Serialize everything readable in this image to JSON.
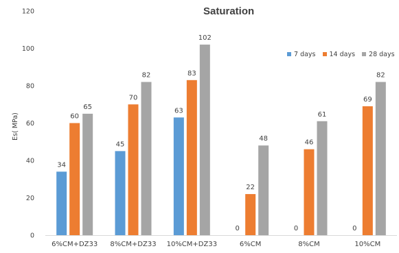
{
  "chart_data": {
    "type": "bar",
    "title": "Saturation",
    "ylabel": "Es( MPa)",
    "xlabel": "",
    "ylim": [
      0,
      120
    ],
    "ytick_step": 20,
    "ytick_labels": [
      "0",
      "20",
      "40",
      "60",
      "80",
      "100",
      "120"
    ],
    "categories": [
      "6%CM+DZ33",
      "8%CM+DZ33",
      "10%CM+DZ33",
      "6%CM",
      "8%CM",
      "10%CM"
    ],
    "series": [
      {
        "name": "7 days",
        "color": "#5b9bd5",
        "values": [
          34,
          45,
          63,
          0,
          0,
          0
        ]
      },
      {
        "name": "14 days",
        "color": "#ed7d31",
        "values": [
          60,
          70,
          83,
          22,
          46,
          69
        ]
      },
      {
        "name": "28 days",
        "color": "#a5a5a5",
        "values": [
          65,
          82,
          102,
          48,
          61,
          82
        ]
      }
    ],
    "data_labels": [
      [
        "34",
        "45",
        "63",
        "0",
        "0",
        "0"
      ],
      [
        "60",
        "70",
        "83",
        "22",
        "46",
        "69"
      ],
      [
        "65",
        "82",
        "102",
        "48",
        "61",
        "82"
      ]
    ],
    "grid": false,
    "legend_position": "top-right"
  }
}
